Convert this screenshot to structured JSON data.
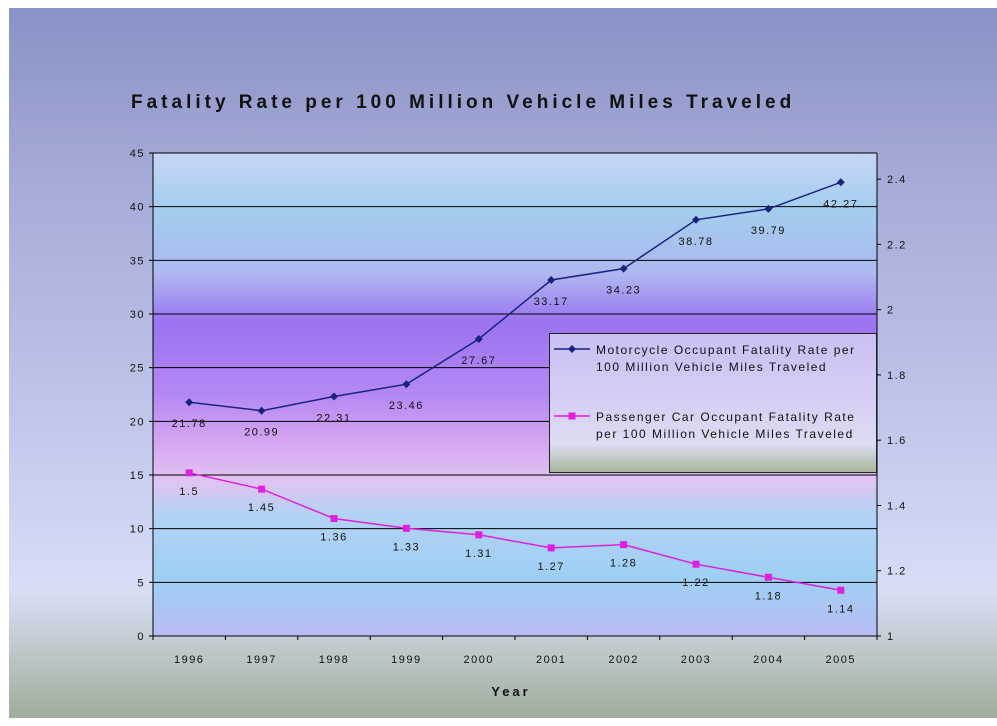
{
  "chart_data": {
    "type": "line",
    "title": "Fatality Rate per 100 Million Vehicle Miles Traveled",
    "xlabel": "Year",
    "categories": [
      "1996",
      "1997",
      "1998",
      "1999",
      "2000",
      "2001",
      "2002",
      "2003",
      "2004",
      "2005"
    ],
    "y_left": {
      "ylim": [
        0,
        45
      ],
      "ticks": [
        "0",
        "5",
        "10",
        "15",
        "20",
        "25",
        "30",
        "35",
        "40",
        "45"
      ]
    },
    "y_right": {
      "ylim": [
        1,
        2.48
      ],
      "ticks": [
        "1",
        "1.2",
        "1.4",
        "1.6",
        "1.8",
        "2",
        "2.2",
        "2.4"
      ]
    },
    "grid": true,
    "legend_position": "right",
    "series": [
      {
        "name": "Motorcycle Occupant Fatality Rate per 100 Million Vehicle Miles Traveled",
        "axis": "left",
        "values": [
          21.78,
          20.99,
          22.31,
          23.46,
          27.67,
          33.17,
          34.23,
          38.78,
          39.79,
          42.27
        ],
        "labels": [
          "21.78",
          "20.99",
          "22.31",
          "23.46",
          "27.67",
          "33.17",
          "34.23",
          "38.78",
          "39.79",
          "42.27"
        ],
        "color": "#1a237e",
        "marker": "diamond"
      },
      {
        "name": "Passenger Car Occupant Fatality Rate per 100 Million Vehicle Miles Traveled",
        "axis": "right",
        "values": [
          1.5,
          1.45,
          1.36,
          1.33,
          1.31,
          1.27,
          1.28,
          1.22,
          1.18,
          1.14
        ],
        "labels": [
          "1.5",
          "1.45",
          "1.36",
          "1.33",
          "1.31",
          "1.27",
          "1.28",
          "1.22",
          "1.18",
          "1.14"
        ],
        "color": "#e020e0",
        "marker": "square"
      }
    ]
  }
}
